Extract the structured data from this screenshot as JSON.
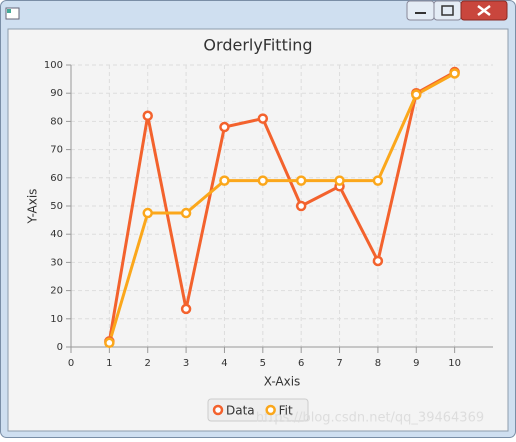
{
  "chart_data": {
    "type": "line",
    "title": "OrderlyFitting",
    "x_label": "X-Axis",
    "y_label": "Y-Axis",
    "x": [
      1,
      2,
      3,
      4,
      5,
      6,
      7,
      8,
      9,
      10
    ],
    "series": [
      {
        "name": "Data",
        "color": "#f3622d",
        "values": [
          2,
          82,
          13.5,
          78,
          81,
          50,
          57,
          30.5,
          90,
          97.5
        ]
      },
      {
        "name": "Fit",
        "color": "#fba71b",
        "values": [
          1.5,
          47.5,
          47.5,
          59,
          59,
          59,
          59,
          59,
          89.5,
          97
        ]
      }
    ],
    "xlim": [
      0,
      11
    ],
    "xticks": [
      0,
      1,
      2,
      3,
      4,
      5,
      6,
      7,
      8,
      9,
      10
    ],
    "ylim": [
      0,
      100
    ],
    "yticks": [
      0,
      10,
      20,
      30,
      40,
      50,
      60,
      70,
      80,
      90,
      100
    ],
    "grid": true,
    "legend": "bottom",
    "watermark": "https://blog.csdn.net/qq_39464369"
  }
}
